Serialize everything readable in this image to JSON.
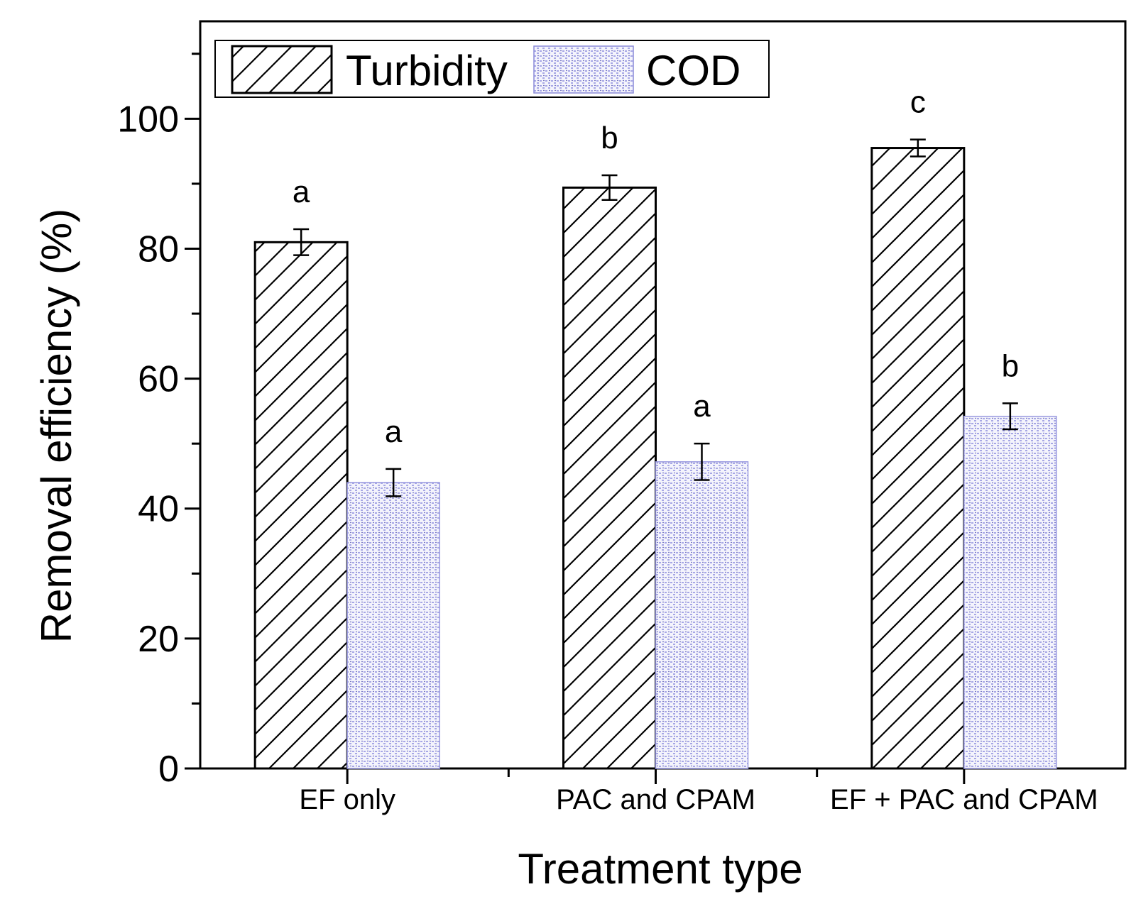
{
  "chart_data": {
    "type": "bar",
    "xlabel": "Treatment type",
    "ylabel": "Removal efficiency (%)",
    "ylim": [
      0,
      115
    ],
    "yticks": [
      0,
      20,
      40,
      60,
      80,
      100
    ],
    "yminor_step": 10,
    "categories": [
      "EF only",
      "PAC and CPAM",
      "EF + PAC and CPAM"
    ],
    "legend_position": "top-left",
    "series": [
      {
        "name": "Turbidity",
        "pattern": "diagonal-hatch",
        "color": "#000000",
        "values": [
          81.0,
          89.4,
          95.5
        ],
        "errors": [
          2.0,
          1.9,
          1.3
        ],
        "significance": [
          "a",
          "b",
          "c"
        ]
      },
      {
        "name": "COD",
        "pattern": "blue-dotted",
        "color": "#4a4acc",
        "values": [
          44.0,
          47.2,
          54.2
        ],
        "errors": [
          2.1,
          2.8,
          2.0
        ],
        "significance": [
          "a",
          "a",
          "b"
        ]
      }
    ]
  }
}
